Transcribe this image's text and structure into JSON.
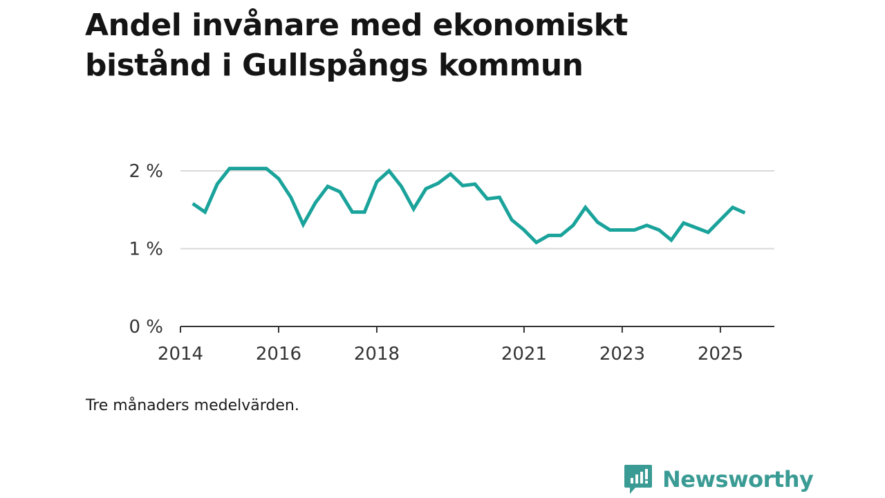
{
  "title": "Andel invånare med ekonomiskt bistånd i Gullspångs kommun",
  "note": "Tre månaders medelvärden.",
  "brand": {
    "name": "Newsworthy",
    "color": "#3a9b94"
  },
  "chart_data": {
    "type": "line",
    "title": "Andel invånare med ekonomiskt bistånd i Gullspångs kommun",
    "xlabel": "",
    "ylabel": "",
    "xlim": [
      2014.0,
      2026.1
    ],
    "ylim": [
      0,
      2.0
    ],
    "yticks": [
      {
        "value": 0,
        "label": "0 %"
      },
      {
        "value": 1,
        "label": "1 %"
      },
      {
        "value": 2,
        "label": "2 %"
      }
    ],
    "xticks": [
      {
        "value": 2014,
        "label": "2014"
      },
      {
        "value": 2016,
        "label": "2016"
      },
      {
        "value": 2018,
        "label": "2018"
      },
      {
        "value": 2021,
        "label": "2021"
      },
      {
        "value": 2023,
        "label": "2023"
      },
      {
        "value": 2025,
        "label": "2025"
      }
    ],
    "grid": true,
    "line_color": "#1aa39b",
    "series": [
      {
        "name": "Andel invånare med ekonomiskt bistånd",
        "x": [
          2014.25,
          2014.5,
          2014.75,
          2015.0,
          2015.25,
          2015.5,
          2015.75,
          2016.0,
          2016.25,
          2016.5,
          2016.75,
          2017.0,
          2017.25,
          2017.5,
          2017.75,
          2018.0,
          2018.25,
          2018.5,
          2018.75,
          2019.0,
          2019.25,
          2019.5,
          2019.75,
          2020.0,
          2020.25,
          2020.5,
          2020.75,
          2021.0,
          2021.25,
          2021.5,
          2021.75,
          2022.0,
          2022.25,
          2022.5,
          2022.75,
          2023.0,
          2023.25,
          2023.5,
          2023.75,
          2024.0,
          2024.25,
          2024.5,
          2024.75,
          2025.0,
          2025.25,
          2025.5
        ],
        "values": [
          1.58,
          1.47,
          1.83,
          2.03,
          2.03,
          2.03,
          2.03,
          1.9,
          1.66,
          1.31,
          1.59,
          1.8,
          1.73,
          1.47,
          1.47,
          1.86,
          2.0,
          1.8,
          1.51,
          1.77,
          1.84,
          1.96,
          1.81,
          1.83,
          1.64,
          1.66,
          1.37,
          1.24,
          1.08,
          1.17,
          1.17,
          1.3,
          1.53,
          1.34,
          1.24,
          1.24,
          1.24,
          1.3,
          1.24,
          1.11,
          1.33,
          1.27,
          1.21,
          1.37,
          1.53,
          1.46
        ]
      }
    ]
  }
}
